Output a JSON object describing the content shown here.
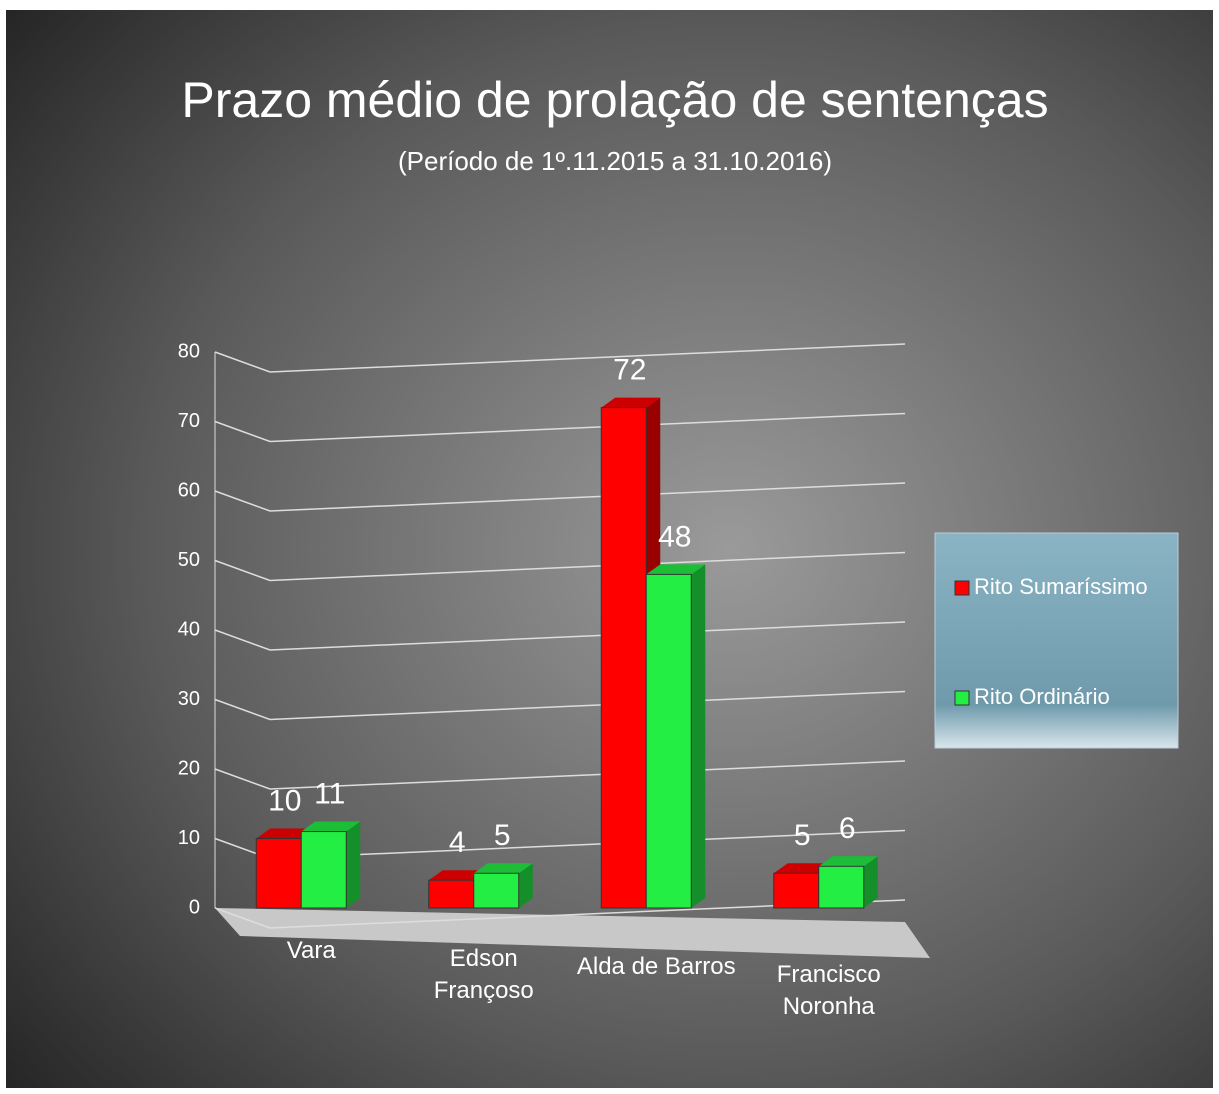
{
  "chart_data": {
    "type": "bar3d",
    "title": "Prazo médio de prolação de sentenças",
    "subtitle": "(Período de 1º.11.2015  a  31.10.2016)",
    "categories": [
      "Vara",
      "Edson\nFrançoso",
      "Alda de Barros",
      "Francisco\nNoronha"
    ],
    "series": [
      {
        "name": "Rito Sumaríssimo",
        "color": "#ff0000",
        "values": [
          10,
          4,
          72,
          5
        ]
      },
      {
        "name": "Rito Ordinário",
        "color": "#22ee44",
        "values": [
          11,
          5,
          48,
          6
        ]
      }
    ],
    "ylim": [
      0,
      80
    ],
    "yticks": [
      0,
      10,
      20,
      30,
      40,
      50,
      60,
      70,
      80
    ],
    "grid": true,
    "legend": "right"
  }
}
